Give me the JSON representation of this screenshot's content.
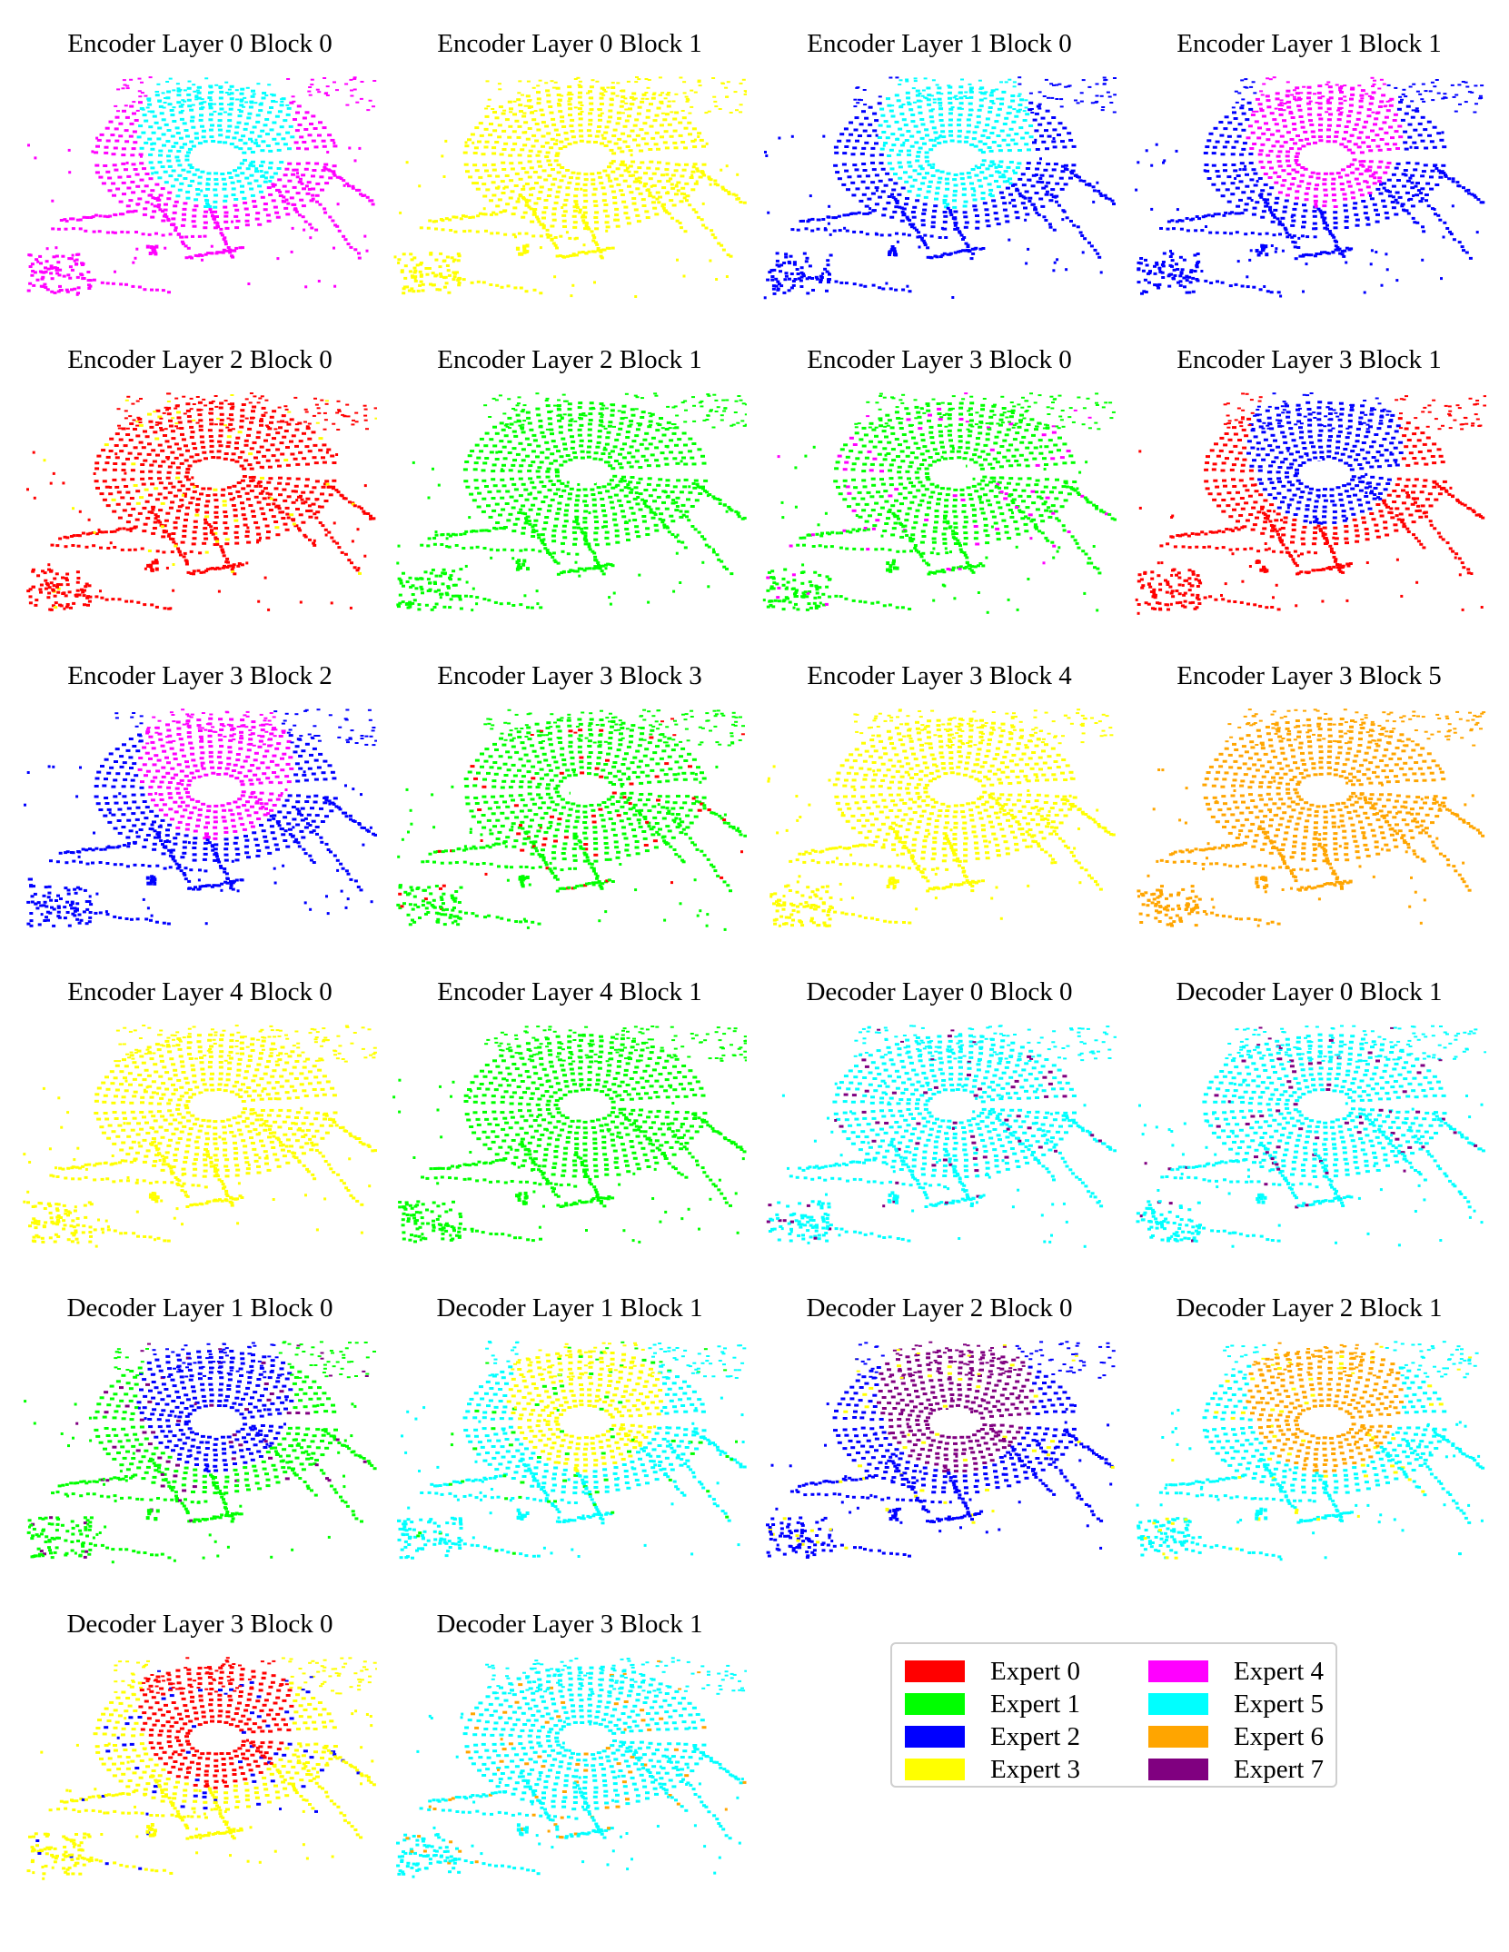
{
  "expert_colors": [
    "#ff0000",
    "#00ff00",
    "#0000ff",
    "#ffff00",
    "#ff00ff",
    "#00ffff",
    "#ffa500",
    "#800080"
  ],
  "panels": [
    {
      "title": "Encoder Layer 0 Block 0",
      "primary": 5,
      "secondary": 4,
      "extra": null
    },
    {
      "title": "Encoder Layer 0 Block 1",
      "primary": 3,
      "secondary": 3,
      "extra": null
    },
    {
      "title": "Encoder Layer 1 Block 0",
      "primary": 5,
      "secondary": 2,
      "extra": null
    },
    {
      "title": "Encoder Layer 1 Block 1",
      "primary": 4,
      "secondary": 2,
      "extra": null
    },
    {
      "title": "Encoder Layer 2 Block 0",
      "primary": 0,
      "secondary": 0,
      "extra": 3
    },
    {
      "title": "Encoder Layer 2 Block 1",
      "primary": 1,
      "secondary": 1,
      "extra": null
    },
    {
      "title": "Encoder Layer 3 Block 0",
      "primary": 1,
      "secondary": 1,
      "extra": 4
    },
    {
      "title": "Encoder Layer 3 Block 1",
      "primary": 2,
      "secondary": 0,
      "extra": null
    },
    {
      "title": "Encoder Layer 3 Block 2",
      "primary": 4,
      "secondary": 2,
      "extra": null
    },
    {
      "title": "Encoder Layer 3 Block 3",
      "primary": 1,
      "secondary": 1,
      "extra": 0
    },
    {
      "title": "Encoder Layer 3 Block 4",
      "primary": 3,
      "secondary": 3,
      "extra": null
    },
    {
      "title": "Encoder Layer 3 Block 5",
      "primary": 6,
      "secondary": 6,
      "extra": null
    },
    {
      "title": "Encoder Layer 4 Block 0",
      "primary": 3,
      "secondary": 3,
      "extra": null
    },
    {
      "title": "Encoder Layer 4 Block 1",
      "primary": 1,
      "secondary": 1,
      "extra": null
    },
    {
      "title": "Decoder Layer 0 Block 0",
      "primary": 5,
      "secondary": 5,
      "extra": 7
    },
    {
      "title": "Decoder Layer 0 Block 1",
      "primary": 5,
      "secondary": 5,
      "extra": 7
    },
    {
      "title": "Decoder Layer 1 Block 0",
      "primary": 2,
      "secondary": 1,
      "extra": 7
    },
    {
      "title": "Decoder Layer 1 Block 1",
      "primary": 3,
      "secondary": 5,
      "extra": 1
    },
    {
      "title": "Decoder Layer 2 Block 0",
      "primary": 7,
      "secondary": 2,
      "extra": 3
    },
    {
      "title": "Decoder Layer 2 Block 1",
      "primary": 6,
      "secondary": 5,
      "extra": 3
    },
    {
      "title": "Decoder Layer 3 Block 0",
      "primary": 0,
      "secondary": 3,
      "extra": 2
    },
    {
      "title": "Decoder Layer 3 Block 1",
      "primary": 5,
      "secondary": 5,
      "extra": 6
    }
  ],
  "legend": [
    {
      "label": "Expert 0",
      "color": "#ff0000"
    },
    {
      "label": "Expert 1",
      "color": "#00ff00"
    },
    {
      "label": "Expert 2",
      "color": "#0000ff"
    },
    {
      "label": "Expert 3",
      "color": "#ffff00"
    },
    {
      "label": "Expert 4",
      "color": "#ff00ff"
    },
    {
      "label": "Expert 5",
      "color": "#00ffff"
    },
    {
      "label": "Expert 6",
      "color": "#ffa500"
    },
    {
      "label": "Expert 7",
      "color": "#800080"
    }
  ]
}
